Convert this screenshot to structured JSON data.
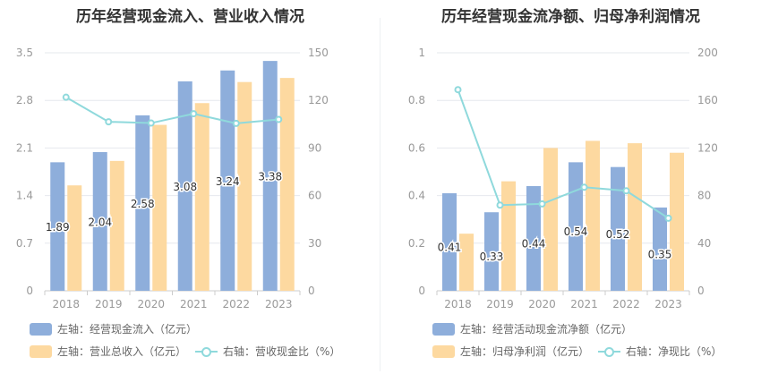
{
  "colors": {
    "blue": "#8eaedb",
    "orange": "#fdd9a0",
    "teal": "#8fd9dc",
    "grid": "#e6e8ee",
    "axis_text": "#999999",
    "label_text": "#333333"
  },
  "chart_data": [
    {
      "type": "bar",
      "title": "历年经营现金流入、营业收入情况",
      "categories": [
        "2018",
        "2019",
        "2020",
        "2021",
        "2022",
        "2023"
      ],
      "y_left": {
        "lim": [
          0,
          3.5
        ],
        "ticks": [
          "0",
          "0.7",
          "1.4",
          "2.1",
          "2.8",
          "3.5"
        ]
      },
      "y_right": {
        "lim": [
          0,
          150
        ],
        "ticks": [
          "0",
          "30",
          "60",
          "90",
          "120",
          "150"
        ]
      },
      "grid": true,
      "series": [
        {
          "name": "左轴：经营现金流入（亿元）",
          "type": "bar",
          "axis": "left",
          "color": "#8eaedb",
          "values": [
            1.89,
            2.04,
            2.58,
            3.08,
            3.24,
            3.38
          ],
          "labels": [
            "1.89",
            "2.04",
            "2.58",
            "3.08",
            "3.24",
            "3.38"
          ]
        },
        {
          "name": "左轴：营业总收入（亿元）",
          "type": "bar",
          "axis": "left",
          "color": "#fdd9a0",
          "values": [
            1.55,
            1.91,
            2.44,
            2.76,
            3.07,
            3.13
          ]
        },
        {
          "name": "右轴：营收现金比（%）",
          "type": "line",
          "axis": "right",
          "color": "#8fd9dc",
          "values": [
            122,
            106.5,
            105.7,
            111.6,
            105.5,
            108
          ]
        }
      ]
    },
    {
      "type": "bar",
      "title": "历年经营现金流净额、归母净利润情况",
      "categories": [
        "2018",
        "2019",
        "2020",
        "2021",
        "2022",
        "2023"
      ],
      "y_left": {
        "lim": [
          0,
          1
        ],
        "ticks": [
          "0",
          "0.2",
          "0.4",
          "0.6",
          "0.8",
          "1"
        ]
      },
      "y_right": {
        "lim": [
          0,
          200
        ],
        "ticks": [
          "0",
          "40",
          "80",
          "120",
          "160",
          "200"
        ]
      },
      "grid": true,
      "series": [
        {
          "name": "左轴：经营活动现金流净额（亿元）",
          "type": "bar",
          "axis": "left",
          "color": "#8eaedb",
          "values": [
            0.41,
            0.33,
            0.44,
            0.54,
            0.52,
            0.35
          ],
          "labels": [
            "0.41",
            "0.33",
            "0.44",
            "0.54",
            "0.52",
            "0.35"
          ]
        },
        {
          "name": "左轴：归母净利润（亿元）",
          "type": "bar",
          "axis": "left",
          "color": "#fdd9a0",
          "values": [
            0.24,
            0.46,
            0.6,
            0.63,
            0.62,
            0.58
          ]
        },
        {
          "name": "右轴：净现比（%）",
          "type": "line",
          "axis": "right",
          "color": "#8fd9dc",
          "values": [
            169,
            72,
            73,
            87,
            84,
            61
          ]
        }
      ]
    }
  ]
}
